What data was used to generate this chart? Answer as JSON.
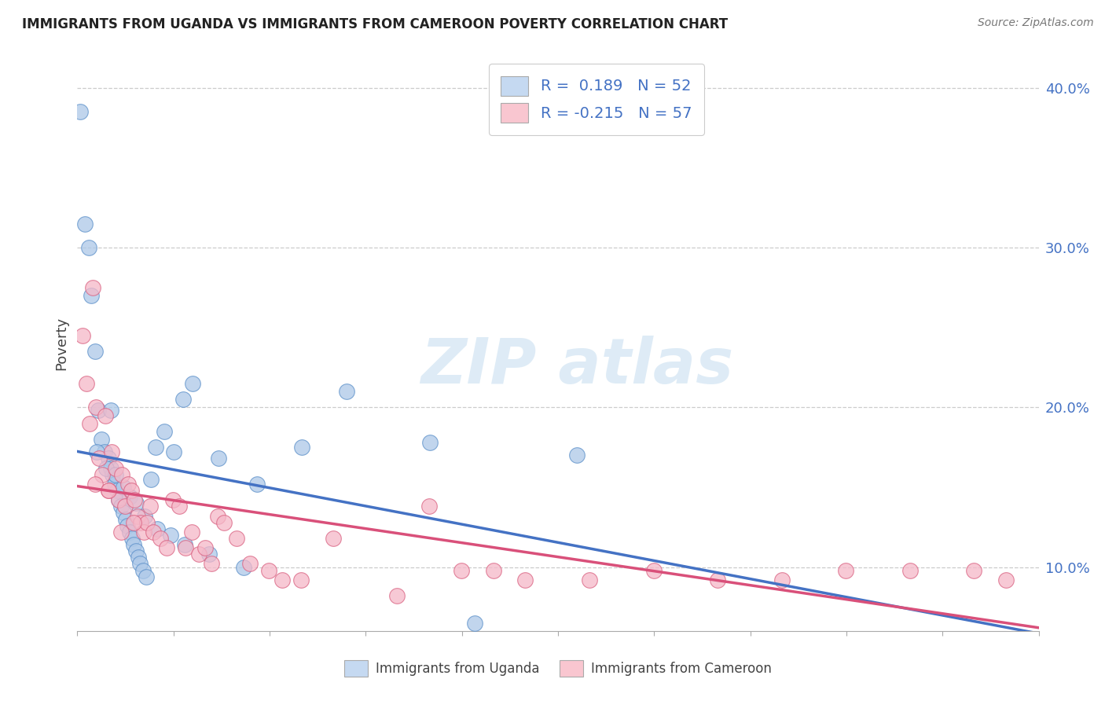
{
  "title": "IMMIGRANTS FROM UGANDA VS IMMIGRANTS FROM CAMEROON POVERTY CORRELATION CHART",
  "source": "Source: ZipAtlas.com",
  "ylabel": "Poverty",
  "xlim": [
    0.0,
    15.0
  ],
  "ylim": [
    6.0,
    42.0
  ],
  "yticks": [
    10.0,
    20.0,
    30.0,
    40.0
  ],
  "ytick_labels": [
    "10.0%",
    "20.0%",
    "30.0%",
    "40.0%"
  ],
  "uganda_R": 0.189,
  "uganda_N": 52,
  "cameroon_R": -0.215,
  "cameroon_N": 57,
  "uganda_color": "#adc8e8",
  "uganda_edge_color": "#5b8fc9",
  "uganda_line_color": "#4472c4",
  "cameroon_color": "#f5b8c8",
  "cameroon_edge_color": "#d96080",
  "cameroon_line_color": "#d9507a",
  "legend_uganda_face": "#c5d9f1",
  "legend_cameroon_face": "#f9c6d0",
  "dashed_line_color": "#aaaaaa",
  "uganda_x": [
    0.05,
    0.12,
    0.18,
    0.22,
    0.28,
    0.32,
    0.38,
    0.42,
    0.48,
    0.52,
    0.55,
    0.58,
    0.62,
    0.65,
    0.68,
    0.72,
    0.75,
    0.78,
    0.82,
    0.85,
    0.88,
    0.92,
    0.95,
    0.98,
    1.02,
    1.08,
    1.15,
    1.22,
    1.35,
    1.5,
    1.65,
    1.8,
    2.2,
    2.8,
    3.5,
    4.2,
    5.5,
    0.3,
    0.45,
    0.6,
    0.72,
    0.82,
    0.92,
    1.05,
    1.25,
    1.45,
    1.68,
    2.05,
    2.6,
    7.8,
    0.52,
    6.2
  ],
  "uganda_y": [
    38.5,
    31.5,
    30.0,
    27.0,
    23.5,
    19.8,
    18.0,
    17.2,
    16.8,
    16.2,
    15.8,
    15.2,
    14.8,
    14.2,
    13.8,
    13.4,
    13.0,
    12.6,
    12.2,
    11.8,
    11.4,
    11.0,
    10.6,
    10.2,
    9.8,
    9.4,
    15.5,
    17.5,
    18.5,
    17.2,
    20.5,
    21.5,
    16.8,
    15.2,
    17.5,
    21.0,
    17.8,
    17.2,
    16.2,
    15.8,
    15.0,
    14.4,
    14.0,
    13.2,
    12.4,
    12.0,
    11.4,
    10.8,
    10.0,
    17.0,
    19.8,
    6.5
  ],
  "cameroon_x": [
    0.08,
    0.14,
    0.19,
    0.24,
    0.29,
    0.34,
    0.39,
    0.44,
    0.49,
    0.54,
    0.59,
    0.64,
    0.69,
    0.74,
    0.79,
    0.84,
    0.89,
    0.94,
    0.99,
    1.04,
    1.09,
    1.14,
    1.19,
    1.29,
    1.39,
    1.49,
    1.59,
    1.69,
    1.79,
    1.89,
    1.99,
    2.09,
    2.19,
    2.29,
    2.49,
    2.69,
    2.99,
    3.19,
    3.49,
    3.99,
    4.99,
    5.49,
    5.99,
    6.49,
    6.99,
    7.99,
    8.99,
    9.99,
    10.99,
    11.99,
    12.99,
    13.99,
    14.49,
    0.28,
    0.48,
    0.68,
    0.88
  ],
  "cameroon_y": [
    24.5,
    21.5,
    19.0,
    27.5,
    20.0,
    16.8,
    15.8,
    19.5,
    14.8,
    17.2,
    16.2,
    14.2,
    15.8,
    13.8,
    15.2,
    14.8,
    14.2,
    13.2,
    12.8,
    12.2,
    12.8,
    13.8,
    12.2,
    11.8,
    11.2,
    14.2,
    13.8,
    11.2,
    12.2,
    10.8,
    11.2,
    10.2,
    13.2,
    12.8,
    11.8,
    10.2,
    9.8,
    9.2,
    9.2,
    11.8,
    8.2,
    13.8,
    9.8,
    9.8,
    9.2,
    9.2,
    9.8,
    9.2,
    9.2,
    9.8,
    9.8,
    9.8,
    9.2,
    15.2,
    14.8,
    12.2,
    12.8
  ]
}
